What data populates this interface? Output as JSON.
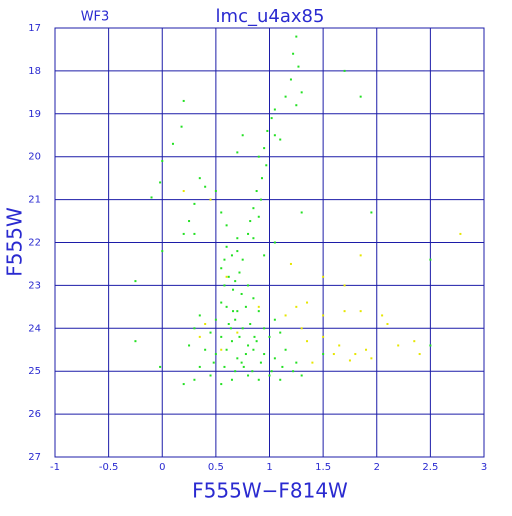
{
  "chart_data": {
    "type": "scatter",
    "title": "lmc_u4ax85",
    "subtitle": "WF3",
    "x_label": "F555W−F814W",
    "y_label": "F555W",
    "xlim": [
      -1,
      3
    ],
    "ylim": [
      27,
      17
    ],
    "xticks": [
      -1,
      -0.5,
      0,
      0.5,
      1,
      1.5,
      2,
      2.5,
      3
    ],
    "yticks": [
      17,
      18,
      19,
      20,
      21,
      22,
      23,
      24,
      25,
      26,
      27
    ],
    "grid": true,
    "grid_color": "#1c1ca8",
    "series": [
      {
        "color": "#22e022",
        "x": [
          1.25,
          1.22,
          1.27,
          1.2,
          1.3,
          1.15,
          1.25,
          1.05,
          1.02,
          0.98,
          1.05,
          0.95,
          0.9,
          0.97,
          0.93,
          0.88,
          0.92,
          0.85,
          0.9,
          0.82,
          0.75,
          0.7,
          0.2,
          0.18,
          0.1,
          0.0,
          -0.02,
          -0.1,
          0.35,
          0.4,
          0.5,
          0.3,
          0.25,
          0.2,
          0.3,
          0.55,
          0.6,
          0.7,
          0.8,
          1.1,
          1.3,
          1.95,
          1.85,
          1.7,
          -0.25,
          -0.25,
          2.5,
          2.5,
          -0.02,
          0.6,
          0.65,
          0.7,
          0.75,
          0.55,
          0.62,
          0.68,
          0.72,
          0.58,
          0.66,
          0.74,
          0.8,
          0.85,
          0.55,
          0.6,
          0.7,
          0.78,
          0.9,
          0.5,
          0.62,
          0.68,
          0.75,
          0.82,
          0.95,
          1.05,
          0.45,
          0.55,
          0.65,
          0.72,
          0.8,
          0.88,
          1.0,
          1.1,
          0.4,
          0.5,
          0.6,
          0.7,
          0.78,
          0.85,
          0.95,
          1.05,
          1.15,
          0.35,
          0.48,
          0.58,
          0.68,
          0.76,
          0.84,
          0.92,
          1.02,
          1.12,
          1.22,
          0.3,
          0.45,
          0.55,
          0.65,
          0.8,
          0.9,
          1.0,
          1.1,
          1.25,
          0.25,
          0.3,
          0.35,
          0.2,
          0.58,
          0.66,
          0.74,
          0.86,
          0.64,
          1.3,
          1.5,
          0.0,
          0.95,
          0.85,
          1.05
        ],
        "y": [
          17.2,
          17.6,
          17.9,
          18.2,
          18.5,
          18.6,
          18.8,
          18.9,
          19.1,
          19.4,
          19.5,
          19.8,
          20.0,
          20.2,
          20.5,
          20.8,
          21.0,
          21.2,
          21.4,
          21.5,
          19.5,
          19.9,
          18.7,
          19.3,
          19.7,
          20.1,
          20.6,
          20.95,
          20.5,
          20.7,
          20.8,
          21.1,
          21.5,
          21.8,
          21.8,
          21.3,
          21.6,
          21.9,
          21.8,
          19.6,
          21.3,
          21.3,
          18.6,
          18.0,
          22.9,
          24.3,
          22.4,
          24.4,
          24.9,
          22.1,
          22.3,
          22.2,
          22.4,
          22.6,
          22.8,
          22.9,
          22.7,
          23.0,
          23.1,
          23.2,
          23.0,
          23.3,
          23.4,
          23.5,
          23.6,
          23.5,
          23.6,
          23.8,
          23.9,
          23.8,
          24.0,
          23.9,
          24.0,
          23.8,
          24.1,
          24.2,
          24.3,
          24.2,
          24.4,
          24.3,
          24.2,
          24.1,
          24.5,
          24.6,
          24.5,
          24.7,
          24.6,
          24.5,
          24.6,
          24.7,
          24.5,
          24.9,
          24.8,
          24.9,
          25.0,
          24.9,
          25.0,
          24.8,
          25.0,
          24.9,
          25.0,
          25.2,
          25.1,
          25.3,
          25.2,
          25.1,
          25.2,
          25.1,
          25.2,
          24.8,
          24.4,
          24.0,
          23.7,
          25.3,
          22.4,
          23.6,
          24.8,
          24.2,
          24.0,
          25.1,
          24.6,
          22.2,
          22.3,
          21.9,
          22.0
        ]
      },
      {
        "color": "#e6e600",
        "x": [
          0.2,
          0.45,
          2.78,
          1.85,
          1.5,
          1.2,
          1.7,
          0.6,
          1.35,
          1.25,
          1.5,
          1.7,
          1.85,
          2.05,
          2.1,
          0.4,
          0.35,
          1.35,
          1.5,
          1.65,
          1.8,
          1.9,
          2.2,
          2.35,
          2.4,
          1.4,
          1.6,
          1.75,
          1.95,
          0.9,
          0.7,
          1.15,
          1.3,
          0.55
        ],
        "y": [
          20.8,
          21.0,
          21.8,
          22.3,
          22.8,
          22.5,
          23.0,
          22.8,
          23.4,
          23.5,
          23.7,
          23.6,
          23.6,
          23.7,
          23.9,
          23.9,
          24.2,
          24.3,
          24.2,
          24.4,
          24.6,
          24.5,
          24.4,
          24.3,
          24.6,
          24.8,
          24.6,
          24.75,
          24.7,
          23.5,
          24.1,
          23.7,
          24.0,
          24.5
        ]
      }
    ]
  }
}
